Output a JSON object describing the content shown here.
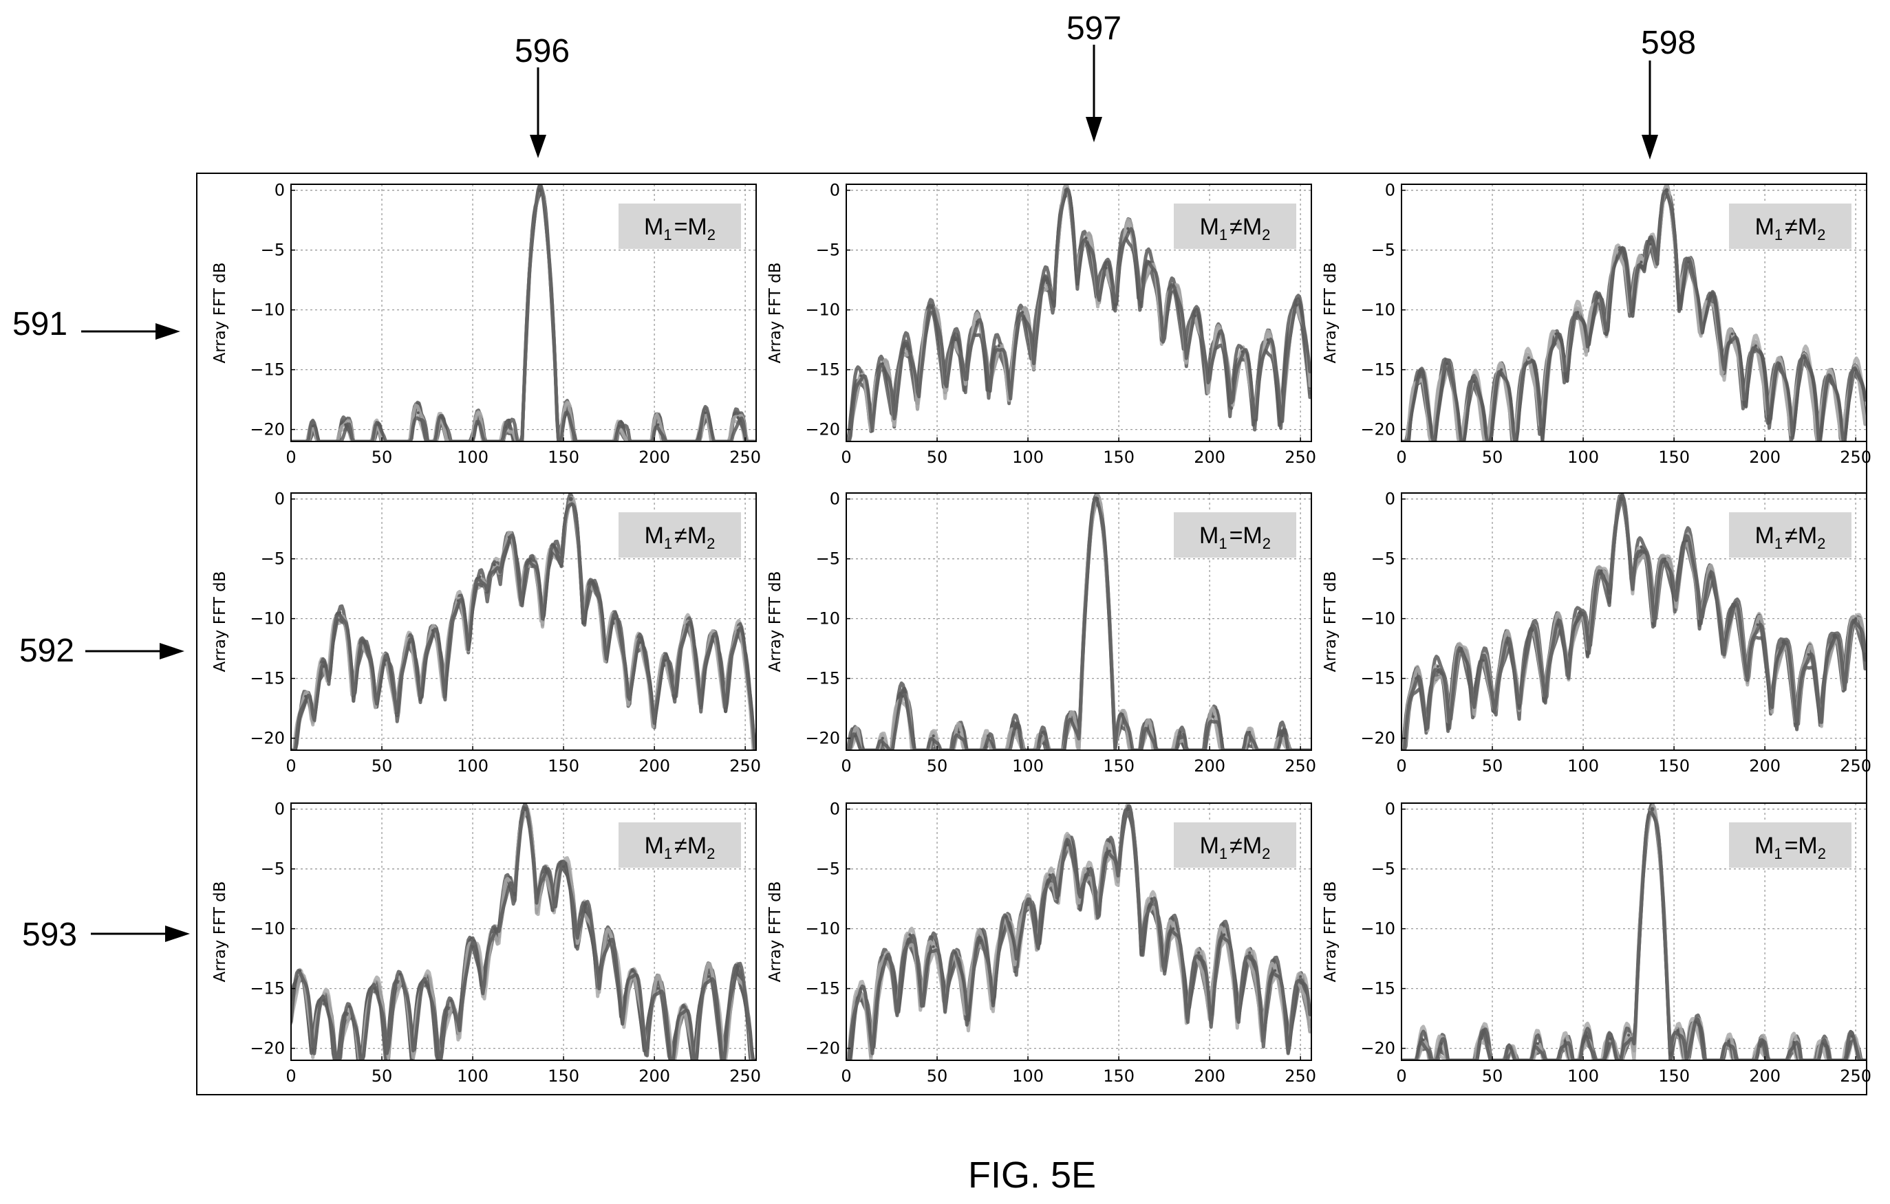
{
  "figure": {
    "caption": "FIG. 5E",
    "column_refs": [
      "596",
      "597",
      "598"
    ],
    "row_refs": [
      "591",
      "592",
      "593"
    ],
    "colors": {
      "axis": "#000000",
      "grid": "#9a9a9a",
      "badge_bg": "#d6d6d6",
      "series_dark": "#595959",
      "series_light": "#a9a9a9"
    }
  },
  "chart_data": [
    {
      "type": "line",
      "row": 1,
      "col": 1,
      "ylabel": "Array FFT dB",
      "xlabel": "",
      "title": "",
      "legend": "top-right",
      "badge": {
        "main": "M",
        "sub1": "1",
        "op": "=",
        "sub2": "2"
      },
      "xlim": [
        0,
        256
      ],
      "ylim": [
        -21,
        0.5
      ],
      "xticks": [
        0,
        50,
        100,
        150,
        200,
        250
      ],
      "yticks": [
        0,
        -5,
        -10,
        -15,
        -20
      ],
      "main_peak": {
        "x": 137,
        "y": 0
      },
      "side_peaks": [
        {
          "x": 12,
          "y": -19.7
        },
        {
          "x": 30,
          "y": -19.6
        },
        {
          "x": 48,
          "y": -19.6
        },
        {
          "x": 70,
          "y": -18.6
        },
        {
          "x": 83,
          "y": -19.0
        },
        {
          "x": 103,
          "y": -19.5
        },
        {
          "x": 120,
          "y": -19.2
        },
        {
          "x": 152,
          "y": -18.7
        },
        {
          "x": 182,
          "y": -19.4
        },
        {
          "x": 202,
          "y": -19.6
        },
        {
          "x": 228,
          "y": -18.6
        },
        {
          "x": 246,
          "y": -19.0
        }
      ]
    },
    {
      "type": "line",
      "row": 1,
      "col": 2,
      "ylabel": "Array FFT dB",
      "xlabel": "",
      "title": "",
      "legend": "top-right",
      "badge": {
        "main": "M",
        "sub1": "1",
        "op": "≠",
        "sub2": "2"
      },
      "xlim": [
        0,
        256
      ],
      "ylim": [
        -21,
        0.5
      ],
      "xticks": [
        0,
        50,
        100,
        150,
        200,
        250
      ],
      "yticks": [
        0,
        -5,
        -10,
        -15,
        -20
      ],
      "main_peak": {
        "x": 121,
        "y": 0
      },
      "side_peaks": [
        {
          "x": 8,
          "y": -15.5
        },
        {
          "x": 20,
          "y": -14.5
        },
        {
          "x": 33,
          "y": -13.0
        },
        {
          "x": 47,
          "y": -9.8
        },
        {
          "x": 60,
          "y": -12.5
        },
        {
          "x": 72,
          "y": -11.0
        },
        {
          "x": 84,
          "y": -13.0
        },
        {
          "x": 97,
          "y": -10.2
        },
        {
          "x": 110,
          "y": -7.5
        },
        {
          "x": 132,
          "y": -4.0
        },
        {
          "x": 143,
          "y": -6.5
        },
        {
          "x": 155,
          "y": -3.2
        },
        {
          "x": 167,
          "y": -6.0
        },
        {
          "x": 180,
          "y": -8.0
        },
        {
          "x": 192,
          "y": -10.5
        },
        {
          "x": 205,
          "y": -12.0
        },
        {
          "x": 218,
          "y": -13.5
        },
        {
          "x": 232,
          "y": -12.5
        },
        {
          "x": 248,
          "y": -9.6
        }
      ]
    },
    {
      "type": "line",
      "row": 1,
      "col": 3,
      "ylabel": "Array FFT dB",
      "xlabel": "",
      "title": "",
      "legend": "top-right",
      "badge": {
        "main": "M",
        "sub1": "1",
        "op": "≠",
        "sub2": "2"
      },
      "xlim": [
        0,
        256
      ],
      "ylim": [
        -21,
        0.5
      ],
      "xticks": [
        0,
        50,
        100,
        150,
        200,
        250
      ],
      "yticks": [
        0,
        -5,
        -10,
        -15,
        -20
      ],
      "main_peak": {
        "x": 146,
        "y": 0
      },
      "side_peaks": [
        {
          "x": 10,
          "y": -15.5
        },
        {
          "x": 25,
          "y": -14.5
        },
        {
          "x": 40,
          "y": -16.0
        },
        {
          "x": 55,
          "y": -15.0
        },
        {
          "x": 70,
          "y": -14.0
        },
        {
          "x": 85,
          "y": -12.0
        },
        {
          "x": 97,
          "y": -10.2
        },
        {
          "x": 108,
          "y": -9.0
        },
        {
          "x": 120,
          "y": -5.0
        },
        {
          "x": 132,
          "y": -6.0
        },
        {
          "x": 137,
          "y": -4.5
        },
        {
          "x": 158,
          "y": -6.0
        },
        {
          "x": 170,
          "y": -9.0
        },
        {
          "x": 182,
          "y": -12.0
        },
        {
          "x": 195,
          "y": -13.0
        },
        {
          "x": 208,
          "y": -14.5
        },
        {
          "x": 222,
          "y": -14.0
        },
        {
          "x": 236,
          "y": -15.5
        },
        {
          "x": 250,
          "y": -15.0
        }
      ]
    },
    {
      "type": "line",
      "row": 2,
      "col": 1,
      "ylabel": "Array FFT dB",
      "xlabel": "",
      "title": "",
      "legend": "top-right",
      "badge": {
        "main": "M",
        "sub1": "1",
        "op": "≠",
        "sub2": "2"
      },
      "xlim": [
        0,
        256
      ],
      "ylim": [
        -21,
        0.5
      ],
      "xticks": [
        0,
        50,
        100,
        150,
        200,
        250
      ],
      "yticks": [
        0,
        -5,
        -10,
        -15,
        -20
      ],
      "main_peak": {
        "x": 154,
        "y": 0
      },
      "side_peaks": [
        {
          "x": 8,
          "y": -16.5
        },
        {
          "x": 18,
          "y": -14.0
        },
        {
          "x": 27,
          "y": -9.5
        },
        {
          "x": 40,
          "y": -12.0
        },
        {
          "x": 52,
          "y": -13.5
        },
        {
          "x": 65,
          "y": -12.0
        },
        {
          "x": 78,
          "y": -11.0
        },
        {
          "x": 92,
          "y": -8.5
        },
        {
          "x": 104,
          "y": -6.5
        },
        {
          "x": 112,
          "y": -5.5
        },
        {
          "x": 120,
          "y": -3.2
        },
        {
          "x": 132,
          "y": -5.0
        },
        {
          "x": 145,
          "y": -4.0
        },
        {
          "x": 166,
          "y": -7.0
        },
        {
          "x": 178,
          "y": -10.0
        },
        {
          "x": 192,
          "y": -12.0
        },
        {
          "x": 206,
          "y": -13.5
        },
        {
          "x": 218,
          "y": -10.5
        },
        {
          "x": 232,
          "y": -11.5
        },
        {
          "x": 246,
          "y": -11.0
        }
      ]
    },
    {
      "type": "line",
      "row": 2,
      "col": 2,
      "ylabel": "Array FFT dB",
      "xlabel": "",
      "title": "",
      "legend": "top-right",
      "badge": {
        "main": "M",
        "sub1": "1",
        "op": "=",
        "sub2": "2"
      },
      "xlim": [
        0,
        256
      ],
      "ylim": [
        -21,
        0.5
      ],
      "xticks": [
        0,
        50,
        100,
        150,
        200,
        250
      ],
      "yticks": [
        0,
        -5,
        -10,
        -15,
        -20
      ],
      "main_peak": {
        "x": 138,
        "y": 0
      },
      "side_peaks": [
        {
          "x": 5,
          "y": -19.8
        },
        {
          "x": 20,
          "y": -20.0
        },
        {
          "x": 31,
          "y": -16.5
        },
        {
          "x": 48,
          "y": -19.8
        },
        {
          "x": 62,
          "y": -19.5
        },
        {
          "x": 78,
          "y": -19.8
        },
        {
          "x": 93,
          "y": -19.2
        },
        {
          "x": 108,
          "y": -19.5
        },
        {
          "x": 124,
          "y": -18.5
        },
        {
          "x": 152,
          "y": -18.0
        },
        {
          "x": 166,
          "y": -19.2
        },
        {
          "x": 184,
          "y": -19.5
        },
        {
          "x": 202,
          "y": -18.2
        },
        {
          "x": 222,
          "y": -19.5
        },
        {
          "x": 240,
          "y": -19.8
        }
      ]
    },
    {
      "type": "line",
      "row": 2,
      "col": 3,
      "ylabel": "Array FFT dB",
      "xlabel": "",
      "title": "",
      "legend": "top-right",
      "badge": {
        "main": "M",
        "sub1": "1",
        "op": "≠",
        "sub2": "2"
      },
      "xlim": [
        0,
        256
      ],
      "ylim": [
        -21,
        0.5
      ],
      "xticks": [
        0,
        50,
        100,
        150,
        200,
        250
      ],
      "yticks": [
        0,
        -5,
        -10,
        -15,
        -20
      ],
      "main_peak": {
        "x": 121,
        "y": 0
      },
      "side_peaks": [
        {
          "x": 8,
          "y": -15.0
        },
        {
          "x": 20,
          "y": -14.0
        },
        {
          "x": 33,
          "y": -12.5
        },
        {
          "x": 45,
          "y": -13.5
        },
        {
          "x": 58,
          "y": -12.0
        },
        {
          "x": 72,
          "y": -11.0
        },
        {
          "x": 86,
          "y": -10.5
        },
        {
          "x": 98,
          "y": -9.5
        },
        {
          "x": 110,
          "y": -6.0
        },
        {
          "x": 132,
          "y": -4.0
        },
        {
          "x": 145,
          "y": -5.0
        },
        {
          "x": 157,
          "y": -3.5
        },
        {
          "x": 170,
          "y": -6.5
        },
        {
          "x": 183,
          "y": -9.0
        },
        {
          "x": 196,
          "y": -10.5
        },
        {
          "x": 210,
          "y": -12.0
        },
        {
          "x": 224,
          "y": -13.0
        },
        {
          "x": 238,
          "y": -11.5
        },
        {
          "x": 250,
          "y": -10.0
        }
      ]
    },
    {
      "type": "line",
      "row": 3,
      "col": 1,
      "ylabel": "Array FFT dB",
      "xlabel": "",
      "title": "",
      "legend": "top-right",
      "badge": {
        "main": "M",
        "sub1": "1",
        "op": "≠",
        "sub2": "2"
      },
      "xlim": [
        0,
        256
      ],
      "ylim": [
        -21,
        0.5
      ],
      "xticks": [
        0,
        50,
        100,
        150,
        200,
        250
      ],
      "yticks": [
        0,
        -5,
        -10,
        -15,
        -20
      ],
      "main_peak": {
        "x": 129,
        "y": 0
      },
      "side_peaks": [
        {
          "x": 5,
          "y": -13.5
        },
        {
          "x": 18,
          "y": -16.0
        },
        {
          "x": 32,
          "y": -16.5
        },
        {
          "x": 46,
          "y": -15.0
        },
        {
          "x": 60,
          "y": -13.8
        },
        {
          "x": 74,
          "y": -14.5
        },
        {
          "x": 88,
          "y": -16.0
        },
        {
          "x": 100,
          "y": -11.5
        },
        {
          "x": 112,
          "y": -10.0
        },
        {
          "x": 120,
          "y": -6.5
        },
        {
          "x": 140,
          "y": -5.0
        },
        {
          "x": 150,
          "y": -4.8
        },
        {
          "x": 162,
          "y": -8.0
        },
        {
          "x": 175,
          "y": -11.0
        },
        {
          "x": 188,
          "y": -13.5
        },
        {
          "x": 202,
          "y": -15.0
        },
        {
          "x": 216,
          "y": -16.5
        },
        {
          "x": 230,
          "y": -14.0
        },
        {
          "x": 246,
          "y": -13.2
        }
      ]
    },
    {
      "type": "line",
      "row": 3,
      "col": 2,
      "ylabel": "Array FFT dB",
      "xlabel": "",
      "title": "",
      "legend": "top-right",
      "badge": {
        "main": "M",
        "sub1": "1",
        "op": "≠",
        "sub2": "2"
      },
      "xlim": [
        0,
        256
      ],
      "ylim": [
        -21,
        0.5
      ],
      "xticks": [
        0,
        50,
        100,
        150,
        200,
        250
      ],
      "yticks": [
        0,
        -5,
        -10,
        -15,
        -20
      ],
      "main_peak": {
        "x": 155,
        "y": 0
      },
      "side_peaks": [
        {
          "x": 8,
          "y": -15.0
        },
        {
          "x": 22,
          "y": -12.5
        },
        {
          "x": 35,
          "y": -10.5
        },
        {
          "x": 48,
          "y": -11.5
        },
        {
          "x": 60,
          "y": -12.0
        },
        {
          "x": 74,
          "y": -11.0
        },
        {
          "x": 88,
          "y": -9.0
        },
        {
          "x": 100,
          "y": -8.0
        },
        {
          "x": 112,
          "y": -5.5
        },
        {
          "x": 122,
          "y": -3.0
        },
        {
          "x": 133,
          "y": -5.0
        },
        {
          "x": 145,
          "y": -3.5
        },
        {
          "x": 168,
          "y": -7.5
        },
        {
          "x": 180,
          "y": -10.0
        },
        {
          "x": 194,
          "y": -12.0
        },
        {
          "x": 208,
          "y": -10.5
        },
        {
          "x": 222,
          "y": -12.0
        },
        {
          "x": 236,
          "y": -13.5
        },
        {
          "x": 250,
          "y": -14.0
        }
      ]
    },
    {
      "type": "line",
      "row": 3,
      "col": 3,
      "ylabel": "Array FFT dB",
      "xlabel": "",
      "title": "",
      "legend": "top-right",
      "badge": {
        "main": "M",
        "sub1": "1",
        "op": "=",
        "sub2": "2"
      },
      "xlim": [
        0,
        256
      ],
      "ylim": [
        -21,
        0.5
      ],
      "xticks": [
        0,
        50,
        100,
        150,
        200,
        250
      ],
      "yticks": [
        0,
        -5,
        -10,
        -15,
        -20
      ],
      "main_peak": {
        "x": 138,
        "y": 0
      },
      "side_peaks": [
        {
          "x": 12,
          "y": -19.3
        },
        {
          "x": 22,
          "y": -19.6
        },
        {
          "x": 45,
          "y": -18.8
        },
        {
          "x": 60,
          "y": -20.0
        },
        {
          "x": 75,
          "y": -19.6
        },
        {
          "x": 90,
          "y": -19.4
        },
        {
          "x": 102,
          "y": -19.0
        },
        {
          "x": 115,
          "y": -19.2
        },
        {
          "x": 125,
          "y": -18.9
        },
        {
          "x": 152,
          "y": -18.5
        },
        {
          "x": 162,
          "y": -17.8
        },
        {
          "x": 180,
          "y": -19.4
        },
        {
          "x": 198,
          "y": -19.6
        },
        {
          "x": 216,
          "y": -19.5
        },
        {
          "x": 232,
          "y": -19.6
        },
        {
          "x": 248,
          "y": -19.0
        }
      ]
    }
  ]
}
